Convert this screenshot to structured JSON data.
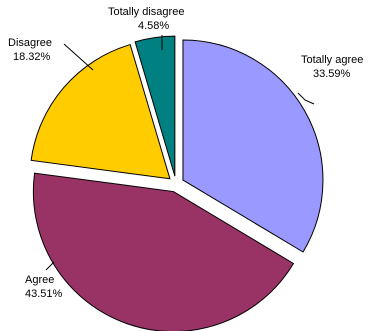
{
  "chart_data": {
    "type": "pie",
    "slices": [
      {
        "name": "Totally agree",
        "value": 33.59,
        "label_value": "33.59%",
        "color": "#9999FF"
      },
      {
        "name": "Agree",
        "value": 43.51,
        "label_value": "43.51%",
        "color": "#993366"
      },
      {
        "name": "Disagree",
        "value": 18.32,
        "label_value": "18.32%",
        "color": "#FFCC00"
      },
      {
        "name": "Totally disagree",
        "value": 4.58,
        "label_value": "4.58%",
        "color": "#008080"
      }
    ],
    "exploded": true,
    "start_angle": "12 o'clock, clockwise",
    "legend": "none, category labels with leader lines"
  }
}
